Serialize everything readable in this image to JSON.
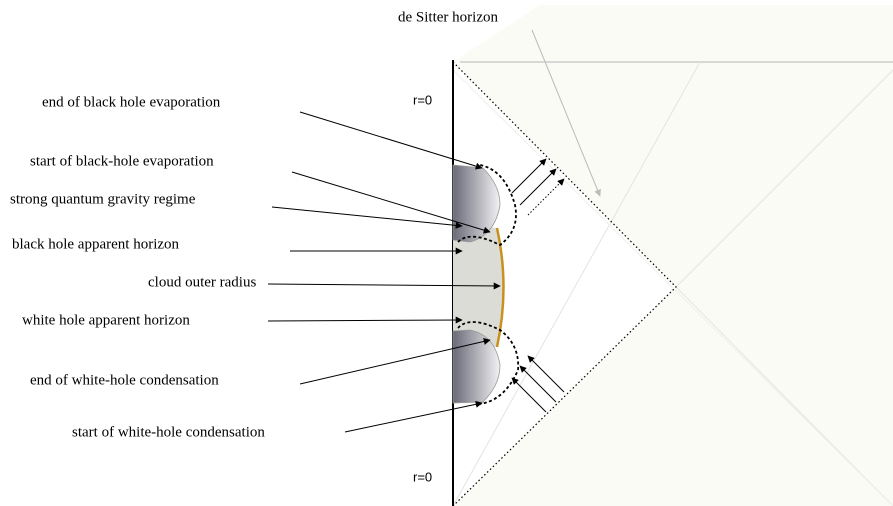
{
  "horizon_label": "de Sitter horizon",
  "axis_labels": {
    "top": "r=0",
    "bottom": "r=0"
  },
  "annotations": [
    "end of black hole evaporation",
    "start of black-hole evaporation",
    "strong quantum gravity regime",
    "black hole apparent horizon",
    "cloud outer radius",
    "white hole apparent horizon",
    "end of white-hole condensation",
    "start of white-hole condensation"
  ]
}
